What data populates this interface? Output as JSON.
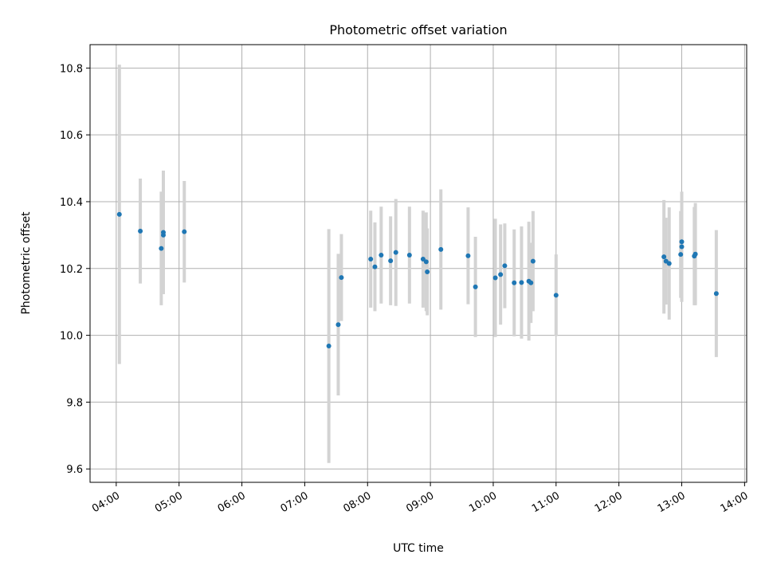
{
  "chart_data": {
    "type": "scatter",
    "title": "Photometric offset variation",
    "xlabel": "UTC time",
    "ylabel": "Photometric offset",
    "x_unit": "time of day (UTC)",
    "xlim": [
      "03:35",
      "14:02"
    ],
    "ylim": [
      9.56,
      10.87
    ],
    "x_ticks": [
      "04:00",
      "05:00",
      "06:00",
      "07:00",
      "08:00",
      "09:00",
      "10:00",
      "11:00",
      "12:00",
      "13:00",
      "14:00"
    ],
    "y_ticks": [
      "9.6",
      "9.8",
      "10.0",
      "10.2",
      "10.4",
      "10.6",
      "10.8"
    ],
    "grid": true,
    "colors": {
      "points": "#1f77b4",
      "error_bars": "#d3d3d3",
      "grid": "#b0b0b0"
    },
    "series": [
      {
        "points": [
          {
            "x": "04:03",
            "y": 10.362,
            "err": 0.448
          },
          {
            "x": "04:23",
            "y": 10.312,
            "err": 0.157
          },
          {
            "x": "04:43",
            "y": 10.26,
            "err": 0.17
          },
          {
            "x": "04:45",
            "y": 10.308,
            "err": 0.185
          },
          {
            "x": "04:45",
            "y": 10.3,
            "err": 0.17
          },
          {
            "x": "05:05",
            "y": 10.31,
            "err": 0.152
          },
          {
            "x": "07:23",
            "y": 9.968,
            "err": 0.35
          },
          {
            "x": "07:32",
            "y": 10.032,
            "err": 0.212
          },
          {
            "x": "07:35",
            "y": 10.173,
            "err": 0.13
          },
          {
            "x": "08:03",
            "y": 10.228,
            "err": 0.145
          },
          {
            "x": "08:07",
            "y": 10.205,
            "err": 0.133
          },
          {
            "x": "08:13",
            "y": 10.24,
            "err": 0.145
          },
          {
            "x": "08:22",
            "y": 10.223,
            "err": 0.133
          },
          {
            "x": "08:27",
            "y": 10.248,
            "err": 0.16
          },
          {
            "x": "08:40",
            "y": 10.24,
            "err": 0.145
          },
          {
            "x": "08:53",
            "y": 10.228,
            "err": 0.145
          },
          {
            "x": "08:56",
            "y": 10.22,
            "err": 0.148
          },
          {
            "x": "08:57",
            "y": 10.19,
            "err": 0.13
          },
          {
            "x": "09:10",
            "y": 10.257,
            "err": 0.18
          },
          {
            "x": "09:36",
            "y": 10.238,
            "err": 0.145
          },
          {
            "x": "09:43",
            "y": 10.145,
            "err": 0.15
          },
          {
            "x": "10:02",
            "y": 10.172,
            "err": 0.177
          },
          {
            "x": "10:07",
            "y": 10.182,
            "err": 0.15
          },
          {
            "x": "10:11",
            "y": 10.208,
            "err": 0.127
          },
          {
            "x": "10:20",
            "y": 10.157,
            "err": 0.16
          },
          {
            "x": "10:27",
            "y": 10.158,
            "err": 0.168
          },
          {
            "x": "10:34",
            "y": 10.162,
            "err": 0.178
          },
          {
            "x": "10:36",
            "y": 10.157,
            "err": 0.12
          },
          {
            "x": "10:38",
            "y": 10.222,
            "err": 0.15
          },
          {
            "x": "11:00",
            "y": 10.12,
            "err": 0.122
          },
          {
            "x": "12:43",
            "y": 10.235,
            "err": 0.17
          },
          {
            "x": "12:45",
            "y": 10.222,
            "err": 0.13
          },
          {
            "x": "12:48",
            "y": 10.215,
            "err": 0.168
          },
          {
            "x": "12:59",
            "y": 10.242,
            "err": 0.13
          },
          {
            "x": "13:00",
            "y": 10.265,
            "err": 0.165
          },
          {
            "x": "13:00",
            "y": 10.28,
            "err": 0.148
          },
          {
            "x": "13:12",
            "y": 10.237,
            "err": 0.147
          },
          {
            "x": "13:13",
            "y": 10.243,
            "err": 0.153
          },
          {
            "x": "13:33",
            "y": 10.125,
            "err": 0.19
          }
        ]
      }
    ]
  }
}
